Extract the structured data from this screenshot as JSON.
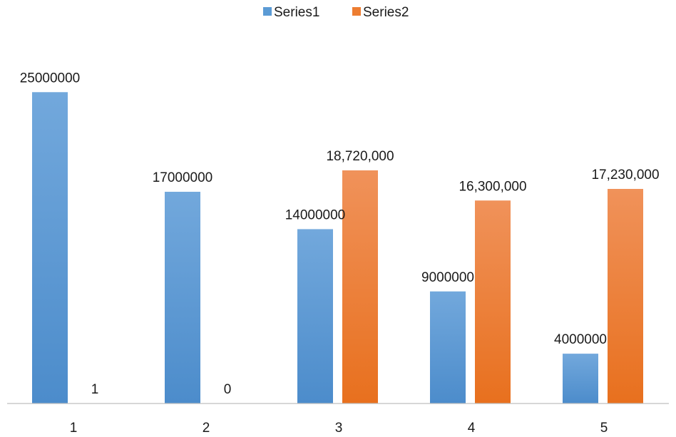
{
  "chart_data": {
    "type": "bar",
    "title": "",
    "xlabel": "",
    "ylabel": "",
    "categories": [
      "1",
      "2",
      "3",
      "4",
      "5"
    ],
    "ylim": [
      0,
      32400000
    ],
    "grid": false,
    "legend_position": "top",
    "series": [
      {
        "name": "Series1",
        "color": "#5b9bd5",
        "values": [
          25000000,
          17000000,
          14000000,
          9000000,
          4000000
        ],
        "labels": [
          "25000000",
          "17000000",
          "14000000",
          "9000000",
          "4000000"
        ]
      },
      {
        "name": "Series2",
        "color": "#ed7d31",
        "values": [
          1,
          0,
          18720000,
          16300000,
          17230000
        ],
        "labels": [
          "1",
          "0",
          "18,720,000",
          "16,300,000",
          "17,230,000"
        ]
      }
    ]
  }
}
